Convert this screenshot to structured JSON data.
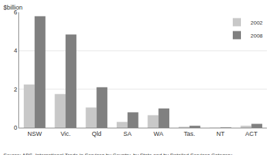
{
  "chart_data": {
    "type": "bar",
    "y_label": "$billion",
    "source": "Source: ABS, International Trade in Services by Country, by State and by Detailed Services Category",
    "categories": [
      "NSW",
      "Vic.",
      "Qld",
      "SA",
      "WA",
      "Tas.",
      "NT",
      "ACT"
    ],
    "series": [
      {
        "name": "2002",
        "color": "#c8c8c8",
        "values": [
          2.25,
          1.75,
          1.05,
          0.3,
          0.65,
          0.05,
          0.01,
          0.1
        ]
      },
      {
        "name": "2008",
        "color": "#808080",
        "values": [
          5.8,
          4.85,
          2.1,
          0.8,
          1.0,
          0.1,
          0.02,
          0.2
        ]
      }
    ],
    "ylim": [
      0,
      6
    ],
    "yticks": [
      0,
      2,
      4,
      6
    ],
    "grid": true,
    "legend": "upper right"
  }
}
